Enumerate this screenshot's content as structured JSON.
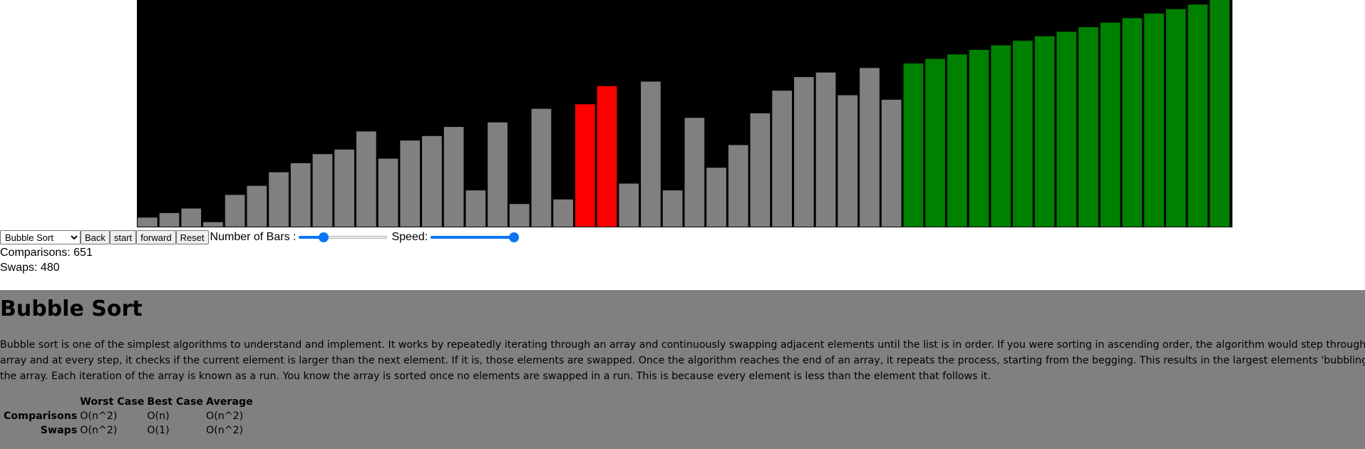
{
  "chart_data": {
    "type": "bar",
    "title": "",
    "xlabel": "",
    "ylabel": "",
    "ylim": [
      0,
      100
    ],
    "values": [
      4,
      6,
      8,
      2,
      14,
      18,
      24,
      28,
      32,
      34,
      42,
      30,
      38,
      40,
      44,
      16,
      46,
      10,
      52,
      12,
      54,
      62,
      19,
      64,
      16,
      48,
      26,
      36,
      50,
      60,
      66,
      68,
      58,
      70,
      56,
      72,
      74,
      76,
      78,
      80,
      82,
      84,
      86,
      88,
      90,
      92,
      94,
      96,
      98,
      100
    ],
    "states": [
      "gray",
      "gray",
      "gray",
      "gray",
      "gray",
      "gray",
      "gray",
      "gray",
      "gray",
      "gray",
      "gray",
      "gray",
      "gray",
      "gray",
      "gray",
      "gray",
      "gray",
      "gray",
      "gray",
      "gray",
      "red",
      "red",
      "gray",
      "gray",
      "gray",
      "gray",
      "gray",
      "gray",
      "gray",
      "gray",
      "gray",
      "gray",
      "gray",
      "gray",
      "gray",
      "green",
      "green",
      "green",
      "green",
      "green",
      "green",
      "green",
      "green",
      "green",
      "green",
      "green",
      "green",
      "green",
      "green",
      "green"
    ],
    "colors": {
      "gray": "#808080",
      "red": "#ff0000",
      "green": "#008000",
      "background": "#000000"
    }
  },
  "controls": {
    "algorithm_select": {
      "value": "Bubble Sort",
      "options": [
        "Bubble Sort"
      ]
    },
    "back_label": "Back",
    "start_label": "start",
    "forward_label": "forward",
    "reset_label": "Reset",
    "bars_label": "Number of Bars :",
    "bars_slider_fraction": 0.25,
    "speed_label": "Speed:",
    "speed_slider_fraction": 1.0,
    "accent_color": "#0b75f5"
  },
  "stats": {
    "comparisons_text": "Comparisons: 651",
    "swaps_text": "Swaps: 480"
  },
  "info": {
    "title": "Bubble Sort",
    "lines": [
      "Bubble sort is one of the simplest algorithms to understand and implement. It works by repeatedly iterating through an array and continuously swapping adjacent elements until the list is in order. If you were sorting in ascending order, the algorithm would step through an",
      "array and at every step, it checks if the current element is larger than the next element. If it is, those elements are swapped. Once the algorithm reaches the end of an array, it repeats the process, starting from the begging. This results in the largest elements 'bubbling' up",
      "the array. Each iteration of the array is known as a run. You know the array is sorted once no elements are swapped in a run. This is because every element is less than the element that follows it."
    ],
    "complexity_table": {
      "headers": [
        "",
        "Worst Case",
        "Best Case",
        "Average"
      ],
      "rows": [
        {
          "label": "Comparisons",
          "cells": [
            "O(n^2)",
            "O(n)",
            "O(n^2)"
          ]
        },
        {
          "label": "Swaps",
          "cells": [
            "O(n^2)",
            "O(1)",
            "O(n^2)"
          ]
        }
      ]
    },
    "background_color": "#808080"
  }
}
